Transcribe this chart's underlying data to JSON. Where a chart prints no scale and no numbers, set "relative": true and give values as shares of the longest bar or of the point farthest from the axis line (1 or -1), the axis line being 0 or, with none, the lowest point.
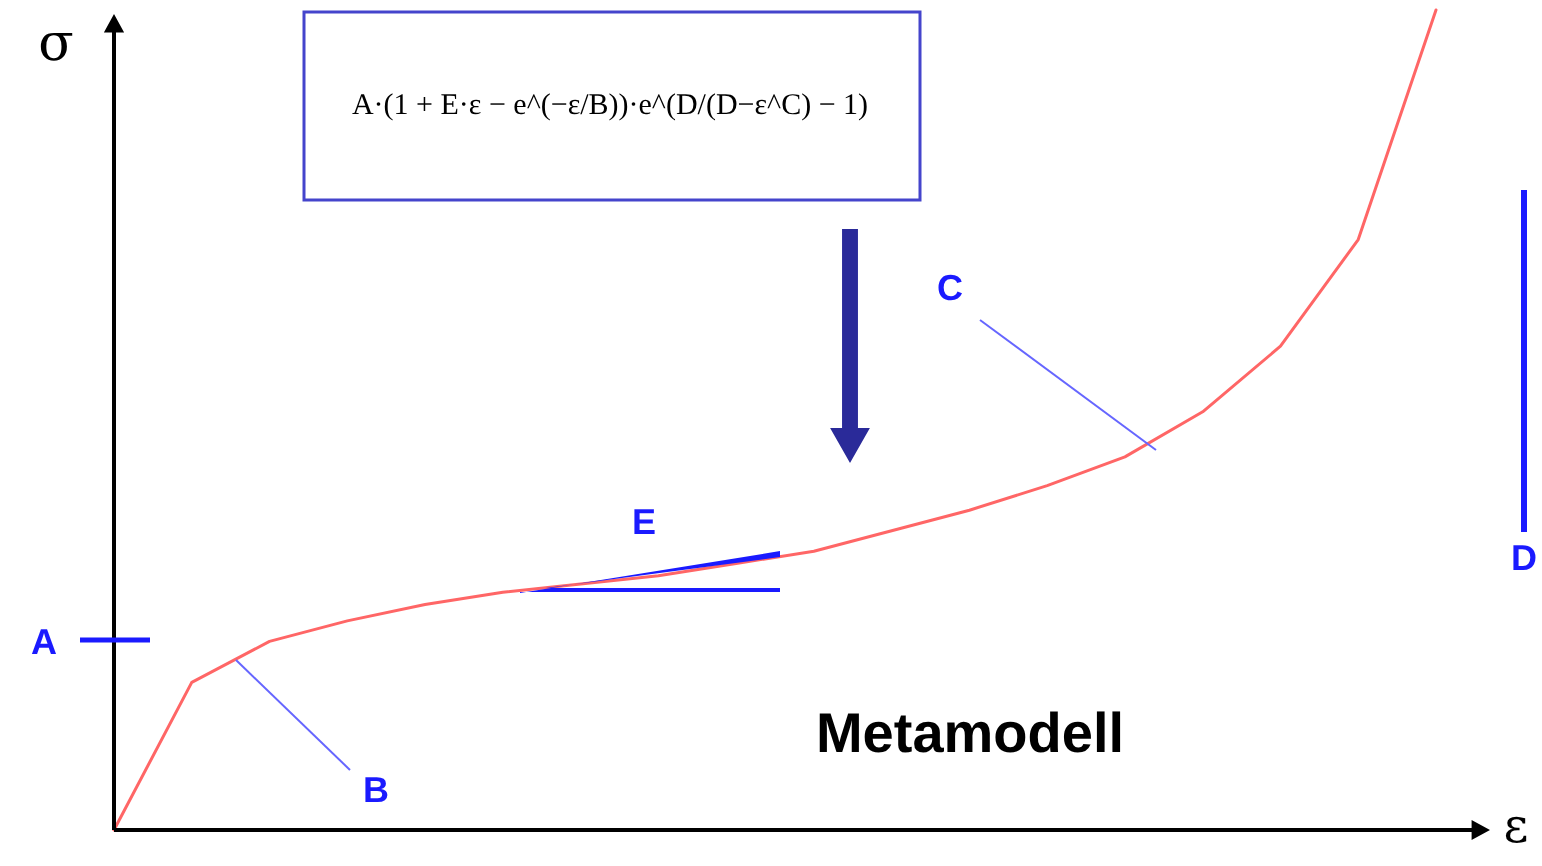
{
  "chart_data": {
    "type": "line",
    "relative": true,
    "xlabel": "ε",
    "ylabel": "σ",
    "categories": [
      null,
      null,
      null,
      null,
      null,
      null,
      null,
      null,
      null,
      null,
      null,
      null,
      null,
      null,
      null,
      null,
      null,
      null
    ],
    "series": [
      {
        "color": "#ff6666",
        "values": [
          0,
          0.18,
          0.23,
          0.255,
          0.275,
          0.29,
          0.3,
          0.31,
          0.325,
          0.34,
          0.365,
          0.39,
          0.42,
          0.455,
          0.51,
          0.59,
          0.72,
          1.0
        ]
      }
    ],
    "annotations": [
      "A·(1 + E·ε − e^(−ε/B))·e^(D/(D−ε^C) − 1)",
      "A",
      "B",
      "C",
      "D",
      "E",
      "Metamodell"
    ],
    "marker": "none",
    "line_style": "solid"
  }
}
